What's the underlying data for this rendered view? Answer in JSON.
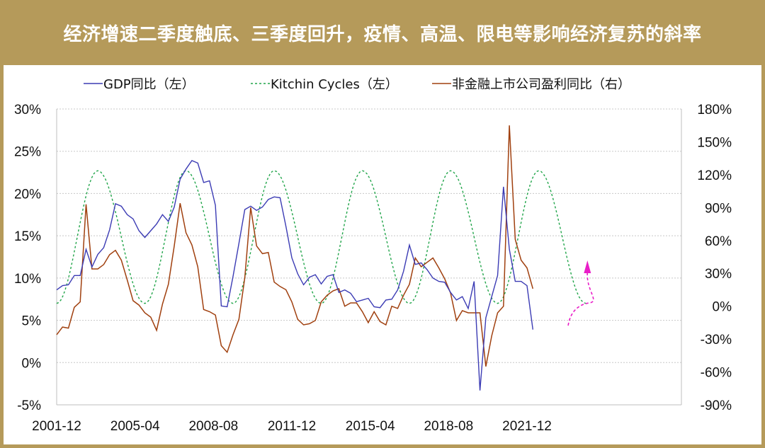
{
  "header": {
    "title": "经济增速二季度触底、三季度回升，疫情、高温、限电等影响经济复苏的斜率"
  },
  "chart_data": {
    "type": "line",
    "title": "经济增速二季度触底、三季度回升，疫情、高温、限电等影响经济复苏的斜率",
    "x_tick_labels": [
      "2001-12",
      "2005-04",
      "2008-08",
      "2011-12",
      "2015-04",
      "2018-08",
      "2021-12"
    ],
    "y_left": {
      "ticks": [
        "30%",
        "25%",
        "20%",
        "15%",
        "10%",
        "5%",
        "0%",
        "-5%"
      ],
      "range": [
        -5,
        30
      ],
      "unit": "%"
    },
    "y_right": {
      "ticks": [
        "180%",
        "150%",
        "120%",
        "90%",
        "60%",
        "30%",
        "0%",
        "-30%",
        "-60%",
        "-90%"
      ],
      "range": [
        -90,
        180
      ],
      "unit": "%"
    },
    "grid": "horizontal dotted",
    "legend_position": "top",
    "series": [
      {
        "name": "GDP同比（左）",
        "axis": "left",
        "color": "#3b3bb4",
        "style": "solid",
        "x": [
          "2001-12",
          "2002-03",
          "2002-06",
          "2002-09",
          "2002-12",
          "2003-03",
          "2003-06",
          "2003-09",
          "2003-12",
          "2004-03",
          "2004-06",
          "2004-09",
          "2004-12",
          "2005-03",
          "2005-06",
          "2005-09",
          "2005-12",
          "2006-03",
          "2006-06",
          "2006-09",
          "2006-12",
          "2007-03",
          "2007-06",
          "2007-09",
          "2007-12",
          "2008-03",
          "2008-06",
          "2008-09",
          "2008-12",
          "2009-03",
          "2009-06",
          "2009-09",
          "2009-12",
          "2010-03",
          "2010-06",
          "2010-09",
          "2010-12",
          "2011-03",
          "2011-06",
          "2011-09",
          "2011-12",
          "2012-03",
          "2012-06",
          "2012-09",
          "2012-12",
          "2013-03",
          "2013-06",
          "2013-09",
          "2013-12",
          "2014-03",
          "2014-06",
          "2014-09",
          "2014-12",
          "2015-03",
          "2015-06",
          "2015-09",
          "2015-12",
          "2016-03",
          "2016-06",
          "2016-09",
          "2016-12",
          "2017-03",
          "2017-06",
          "2017-09",
          "2017-12",
          "2018-03",
          "2018-06",
          "2018-09",
          "2018-12",
          "2019-03",
          "2019-06",
          "2019-09",
          "2019-12",
          "2020-03",
          "2020-06",
          "2020-09",
          "2020-12",
          "2021-03",
          "2021-06",
          "2021-09",
          "2021-12",
          "2022-03",
          "2022-06"
        ],
        "values": [
          8.6,
          9.1,
          9.2,
          10.3,
          10.3,
          13.4,
          11.3,
          12.8,
          13.6,
          15.7,
          18.8,
          18.5,
          17.5,
          17.0,
          15.6,
          14.8,
          15.6,
          16.4,
          17.5,
          16.7,
          18.4,
          21.7,
          22.9,
          23.9,
          23.6,
          21.3,
          21.5,
          18.6,
          6.7,
          6.6,
          10.2,
          14.1,
          18.1,
          18.5,
          18.0,
          18.4,
          19.3,
          19.6,
          19.5,
          16.1,
          12.4,
          10.5,
          9.2,
          10.1,
          10.4,
          9.3,
          10.2,
          10.4,
          8.3,
          8.6,
          8.2,
          7.2,
          7.4,
          7.6,
          6.6,
          6.5,
          7.4,
          7.5,
          8.6,
          10.8,
          13.9,
          11.6,
          11.8,
          11.0,
          10.0,
          9.6,
          9.5,
          8.3,
          7.4,
          7.8,
          6.4,
          9.6,
          -3.3,
          5.3,
          7.8,
          10.3,
          20.8,
          13.4,
          9.6,
          9.6,
          9.1,
          3.9,
          null
        ]
      },
      {
        "name": "Kitchin Cycles（左）",
        "axis": "left",
        "color": "#21a54a",
        "style": "dashed",
        "note": "sinusoidal cycle oscillating between about 7% and 22.7%",
        "min": 7.0,
        "max": 22.7,
        "peaks": [
          "2003-09",
          "2007-06",
          "2011-03",
          "2014-12",
          "2018-09",
          "2022-06"
        ],
        "troughs": [
          "2001-12",
          "2005-09",
          "2009-06",
          "2013-03",
          "2016-12",
          "2020-09",
          "2024-06"
        ]
      },
      {
        "name": "非金融上市公司盈利同比（右）",
        "axis": "right",
        "color": "#a0400f",
        "style": "solid",
        "x": [
          "2001-12",
          "2002-03",
          "2002-06",
          "2002-09",
          "2002-12",
          "2003-03",
          "2003-06",
          "2003-09",
          "2003-12",
          "2004-03",
          "2004-06",
          "2004-09",
          "2004-12",
          "2005-03",
          "2005-06",
          "2005-09",
          "2005-12",
          "2006-03",
          "2006-06",
          "2006-09",
          "2006-12",
          "2007-03",
          "2007-06",
          "2007-09",
          "2007-12",
          "2008-03",
          "2008-06",
          "2008-09",
          "2008-12",
          "2009-03",
          "2009-06",
          "2009-09",
          "2009-12",
          "2010-03",
          "2010-06",
          "2010-09",
          "2010-12",
          "2011-03",
          "2011-06",
          "2011-09",
          "2011-12",
          "2012-03",
          "2012-06",
          "2012-09",
          "2012-12",
          "2013-03",
          "2013-06",
          "2013-09",
          "2013-12",
          "2014-03",
          "2014-06",
          "2014-09",
          "2014-12",
          "2015-03",
          "2015-06",
          "2015-09",
          "2015-12",
          "2016-03",
          "2016-06",
          "2016-09",
          "2016-12",
          "2017-03",
          "2017-06",
          "2017-09",
          "2017-12",
          "2018-03",
          "2018-06",
          "2018-09",
          "2018-12",
          "2019-03",
          "2019-06",
          "2019-09",
          "2019-12",
          "2020-03",
          "2020-06",
          "2020-09",
          "2020-12",
          "2021-03",
          "2021-06",
          "2021-09",
          "2021-12",
          "2022-03",
          "2022-06"
        ],
        "values": [
          -26,
          -19,
          -20,
          -1,
          4,
          93,
          34,
          34,
          38,
          47,
          51,
          42,
          24,
          5,
          1,
          -6,
          -10,
          -22,
          2,
          20,
          55,
          94,
          67,
          56,
          36,
          -3,
          -5,
          -8,
          -36,
          -42,
          -26,
          -12,
          26,
          90,
          55,
          48,
          49,
          22,
          18,
          15,
          4,
          -12,
          -17,
          -16,
          -13,
          4,
          10,
          14,
          16,
          0,
          3,
          3,
          -5,
          -15,
          -5,
          -14,
          -17,
          0,
          -2,
          10,
          20,
          44,
          36,
          40,
          44,
          35,
          25,
          12,
          -13,
          -4,
          -6,
          -6,
          -6,
          -55,
          -27,
          -6,
          0,
          165,
          61,
          42,
          35,
          16,
          null
        ]
      }
    ],
    "forecast_annotation": {
      "color": "#e91ec8",
      "style": "dashed arrow",
      "from": "2023-09",
      "to": "2024-09",
      "direction": "up"
    }
  }
}
